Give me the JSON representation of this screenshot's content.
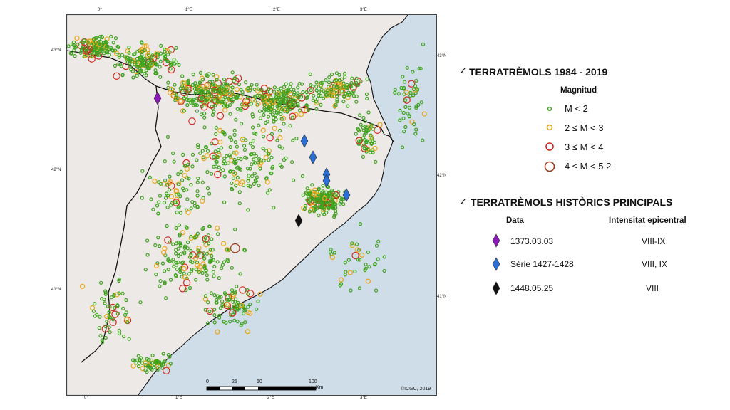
{
  "map": {
    "top_ticks": [
      "0°",
      "1°E",
      "2°E",
      "3°E"
    ],
    "bottom_ticks": [
      "0°",
      "1°E",
      "2°E",
      "3°E"
    ],
    "left_ticks": [
      "43°N",
      "42°N",
      "41°N"
    ],
    "right_ticks": [
      "43°N",
      "42°N",
      "41°N"
    ],
    "scale_labels": [
      "0",
      "25",
      "50",
      "100"
    ],
    "scale_unit": "Km",
    "copyright": "©ICGC, 2019",
    "colors": {
      "sea": "#cfdde8",
      "land": "#ede9e6",
      "border": "#111111",
      "m_lt2": "#3fa21f",
      "m_2_3": "#e8a61a",
      "m_3_4": "#d02a20",
      "m_4_52": "#9a3a1a",
      "hist_1373": "#8a1ab8",
      "hist_1427": "#2a6fd6",
      "hist_1448": "#111111"
    }
  },
  "legend": {
    "check_icon": "check-icon",
    "recent": {
      "title": "TERRATRÈMOLS 1984 - 2019",
      "subtitle": "Magnitud",
      "items": [
        {
          "label": "M < 2",
          "color": "#3fa21f"
        },
        {
          "label": "2 ≤ M < 3",
          "color": "#e8a61a"
        },
        {
          "label": "3 ≤ M < 4",
          "color": "#d02a20"
        },
        {
          "label": "4 ≤ M < 5.2",
          "color": "#9a3a1a"
        }
      ]
    },
    "historic": {
      "title": "TERRATRÈMOLS HISTÒRICS PRINCIPALS",
      "col_date": "Data",
      "col_intensity": "Intensitat epicentral",
      "items": [
        {
          "date": "1373.03.03",
          "intensity": "VIII-IX",
          "color": "#8a1ab8"
        },
        {
          "date": "Sèrie 1427-1428",
          "intensity": "VIII, IX",
          "color": "#2a6fd6"
        },
        {
          "date": "1448.05.25",
          "intensity": "VIII",
          "color": "#111111"
        }
      ]
    }
  }
}
